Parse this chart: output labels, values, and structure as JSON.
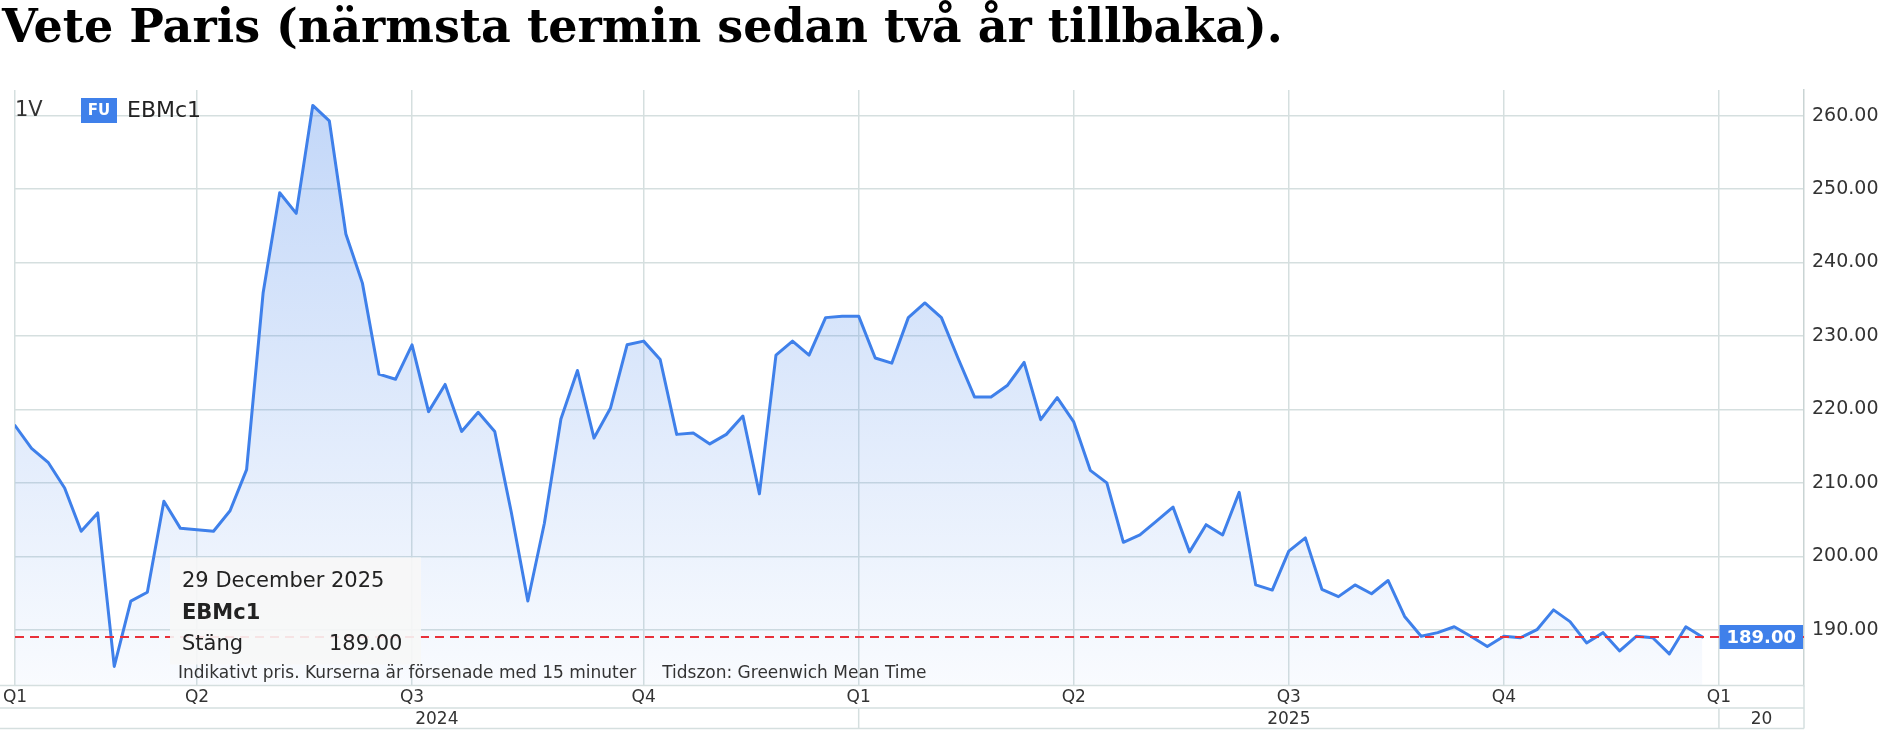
{
  "chart_data": {
    "type": "area",
    "title": "Vete Paris (närmsta termin sedan två år tillbaka).",
    "x": [
      "2024-01-15",
      "2024-01-22",
      "2024-01-29",
      "2024-02-05",
      "2024-02-12",
      "2024-02-19",
      "2024-02-26",
      "2024-03-04",
      "2024-03-11",
      "2024-03-18",
      "2024-03-25",
      "2024-04-01",
      "2024-04-08",
      "2024-04-15",
      "2024-04-22",
      "2024-04-29",
      "2024-05-06",
      "2024-05-13",
      "2024-05-20",
      "2024-05-27",
      "2024-06-03",
      "2024-06-10",
      "2024-06-17",
      "2024-06-24",
      "2024-07-01",
      "2024-07-08",
      "2024-07-15",
      "2024-07-22",
      "2024-07-29",
      "2024-08-05",
      "2024-08-12",
      "2024-08-19",
      "2024-08-26",
      "2024-09-02",
      "2024-09-09",
      "2024-09-16",
      "2024-09-23",
      "2024-09-30",
      "2024-10-07",
      "2024-10-14",
      "2024-10-21",
      "2024-10-28",
      "2024-11-04",
      "2024-11-11",
      "2024-11-18",
      "2024-11-25",
      "2024-12-02",
      "2024-12-09",
      "2024-12-16",
      "2024-12-23",
      "2024-12-30",
      "2025-01-06",
      "2025-01-13",
      "2025-01-20",
      "2025-01-27",
      "2025-02-03",
      "2025-02-10",
      "2025-02-17",
      "2025-02-24",
      "2025-03-03",
      "2025-03-10",
      "2025-03-17",
      "2025-03-24",
      "2025-03-31",
      "2025-04-07",
      "2025-04-14",
      "2025-04-21",
      "2025-04-28",
      "2025-05-05",
      "2025-05-12",
      "2025-05-19",
      "2025-05-26",
      "2025-06-02",
      "2025-06-09",
      "2025-06-16",
      "2025-06-23",
      "2025-06-30",
      "2025-07-07",
      "2025-07-14",
      "2025-07-21",
      "2025-07-28",
      "2025-08-04",
      "2025-08-11",
      "2025-08-18",
      "2025-08-25",
      "2025-09-01",
      "2025-09-08",
      "2025-09-15",
      "2025-09-22",
      "2025-09-29",
      "2025-10-06",
      "2025-10-13",
      "2025-10-20",
      "2025-10-27",
      "2025-11-03",
      "2025-11-10",
      "2025-11-17",
      "2025-11-24",
      "2025-12-01",
      "2025-12-08",
      "2025-12-15",
      "2025-12-22",
      "2025-12-29"
    ],
    "series": [
      {
        "name": "EBMc1",
        "color": "#3f80ea",
        "values": [
          217.8,
          214.7,
          212.8,
          209.3,
          203.4,
          205.9,
          185.0,
          193.9,
          195.1,
          207.5,
          203.8,
          203.6,
          203.4,
          206.2,
          211.8,
          235.9,
          249.5,
          246.7,
          261.4,
          259.3,
          243.9,
          237.2,
          224.8,
          224.1,
          228.8,
          219.7,
          223.4,
          217.0,
          219.6,
          217.0,
          206.0,
          193.9,
          204.5,
          218.7,
          225.3,
          216.1,
          220.2,
          228.8,
          229.3,
          226.8,
          216.6,
          216.8,
          215.3,
          216.6,
          219.1,
          208.5,
          227.4,
          229.3,
          227.4,
          232.5,
          232.7,
          232.7,
          227.0,
          226.3,
          232.5,
          234.5,
          232.5,
          227.0,
          221.7,
          221.7,
          223.3,
          226.4,
          218.6,
          221.6,
          218.3,
          211.7,
          210.0,
          201.9,
          202.9,
          204.8,
          206.7,
          200.6,
          204.3,
          202.9,
          208.7,
          196.1,
          195.4,
          200.7,
          202.5,
          195.5,
          194.5,
          196.1,
          194.9,
          196.7,
          191.8,
          189.1,
          189.6,
          190.4,
          189.1,
          187.7,
          189.1,
          188.9,
          190.0,
          192.7,
          191.1,
          188.2,
          189.6,
          187.1,
          189.1,
          188.9,
          186.7,
          190.4,
          189.0
        ]
      }
    ],
    "xlim": [
      "2024-01-15",
      "2026-02-10"
    ],
    "xticks": [
      {
        "value": "2024-01-15",
        "label": "Q1"
      },
      {
        "value": "2024-04-01",
        "label": "Q2"
      },
      {
        "value": "2024-07-01",
        "label": "Q3"
      },
      {
        "value": "2024-10-07",
        "label": "Q4"
      },
      {
        "value": "2025-01-06",
        "label": "Q1"
      },
      {
        "value": "2025-04-07",
        "label": "Q2"
      },
      {
        "value": "2025-07-07",
        "label": "Q3"
      },
      {
        "value": "2025-10-06",
        "label": "Q4"
      },
      {
        "value": "2026-01-05",
        "label": "Q1"
      }
    ],
    "ylim": [
      182.4,
      263.5
    ],
    "yticks": [
      {
        "value": 190,
        "label": "190.00"
      },
      {
        "value": 200,
        "label": "200.00"
      },
      {
        "value": 210,
        "label": "210.00"
      },
      {
        "value": 220,
        "label": "220.00"
      },
      {
        "value": 230,
        "label": "230.00"
      },
      {
        "value": 240,
        "label": "240.00"
      },
      {
        "value": 250,
        "label": "250.00"
      },
      {
        "value": 260,
        "label": "260.00"
      }
    ],
    "grid": true,
    "legend": "top left",
    "ref_lines": [
      {
        "axis": "y",
        "value": 189,
        "label": "189.00",
        "color": "#e8303a",
        "line_style": "dashed"
      }
    ],
    "annotations": [
      "1V",
      "FU",
      "29 December 2025",
      "EBMc1",
      "Stäng",
      "189.00",
      "Indikativt pris. Kurserna är försenade med 15 minuter",
      "Tidszon: Greenwich Mean Time",
      "2024",
      "2025",
      "20"
    ]
  }
}
